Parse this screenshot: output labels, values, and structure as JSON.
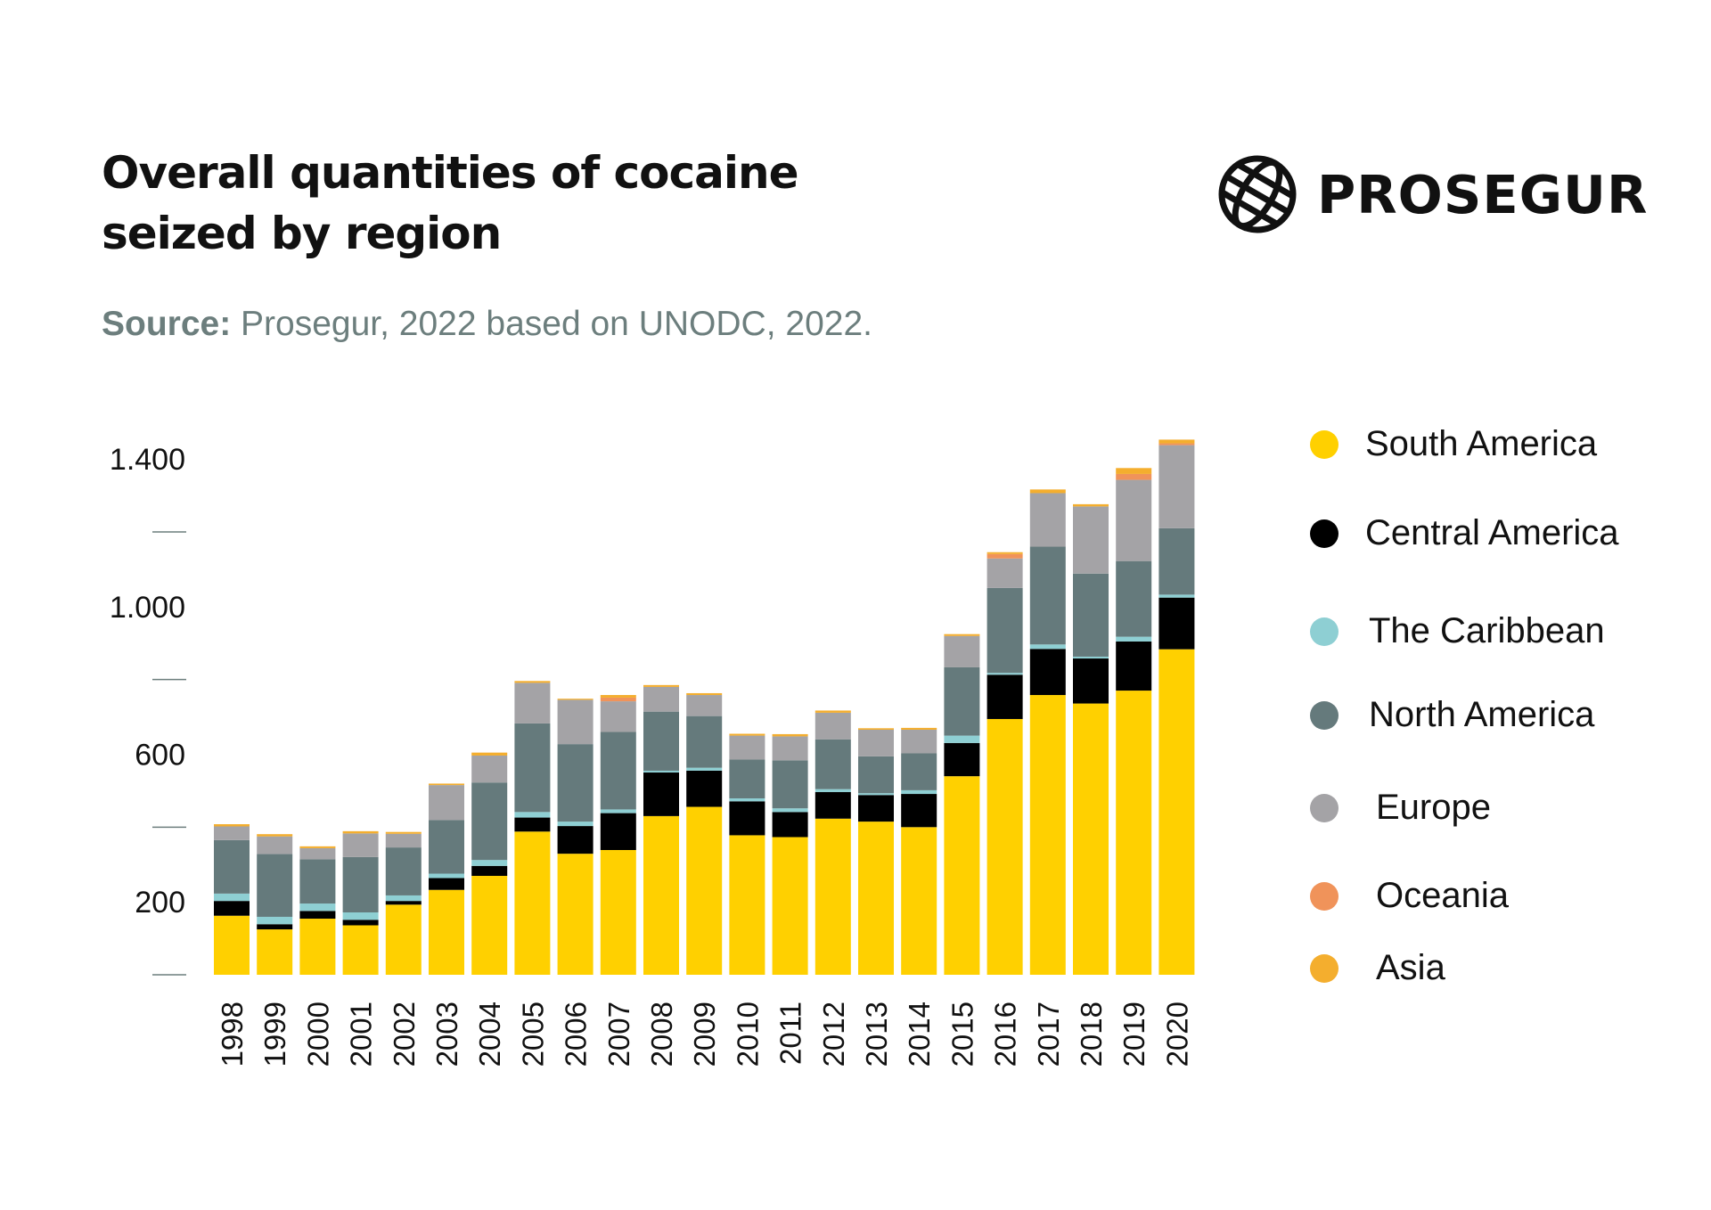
{
  "title": {
    "line1": "Overall quantities of cocaine",
    "line2": "seized by region"
  },
  "source": {
    "label": "Source:",
    "text": " Prosegur, 2022 based on UNODC, 2022."
  },
  "brand": {
    "name": "PROSEGUR",
    "icon": "globe-icon"
  },
  "colors": {
    "south_america": "#FFD000",
    "central_america": "#000000",
    "caribbean": "#8ECFD3",
    "north_america": "#657A7C",
    "europe": "#A4A3A6",
    "oceania": "#F0935A",
    "asia": "#F4AE2E",
    "tick": "#6c7e7d"
  },
  "chart_data": {
    "type": "bar",
    "stacked": true,
    "title": "Overall quantities of cocaine seized by region",
    "xlabel": "",
    "ylabel": "",
    "ylim": [
      0,
      1450
    ],
    "y_ticks_labeled": [
      {
        "value": 200,
        "label": "200"
      },
      {
        "value": 600,
        "label": "600"
      },
      {
        "value": 1000,
        "label": "1.000"
      },
      {
        "value": 1400,
        "label": "1.400"
      }
    ],
    "y_ticks_minor": [
      0,
      400,
      800,
      1200
    ],
    "legend_position": "right",
    "categories": [
      "1998",
      "1999",
      "2000",
      "2001",
      "2002",
      "2003",
      "2004",
      "2005",
      "2006",
      "2007",
      "2008",
      "2009",
      "2010",
      "2011",
      "2012",
      "2013",
      "2014",
      "2015",
      "2016",
      "2017",
      "2018",
      "2019",
      "2020"
    ],
    "series": [
      {
        "name": "South America",
        "color_key": "south_america",
        "values": [
          160,
          123,
          152,
          134,
          190,
          230,
          268,
          388,
          328,
          338,
          430,
          455,
          378,
          373,
          423,
          415,
          400,
          538,
          693,
          758,
          735,
          770,
          882
        ]
      },
      {
        "name": "Central America",
        "color_key": "central_america",
        "values": [
          40,
          14,
          21,
          15,
          10,
          32,
          27,
          38,
          75,
          100,
          118,
          98,
          92,
          68,
          72,
          72,
          90,
          90,
          120,
          125,
          122,
          133,
          140
        ]
      },
      {
        "name": "The Caribbean",
        "color_key": "caribbean",
        "values": [
          20,
          20,
          20,
          20,
          15,
          12,
          16,
          15,
          12,
          10,
          5,
          8,
          8,
          10,
          8,
          5,
          10,
          20,
          5,
          12,
          5,
          13,
          8
        ]
      },
      {
        "name": "North America",
        "color_key": "north_america",
        "values": [
          145,
          170,
          120,
          150,
          130,
          145,
          210,
          240,
          210,
          210,
          160,
          140,
          105,
          130,
          135,
          100,
          100,
          185,
          230,
          265,
          225,
          205,
          180
        ]
      },
      {
        "name": "Europe",
        "color_key": "europe",
        "values": [
          37,
          48,
          30,
          64,
          37,
          95,
          73,
          110,
          120,
          83,
          67,
          57,
          65,
          65,
          72,
          72,
          64,
          85,
          80,
          145,
          182,
          220,
          225
        ]
      },
      {
        "name": "Oceania",
        "color_key": "oceania",
        "values": [
          0,
          0,
          0,
          0,
          0,
          0,
          0,
          0,
          0,
          10,
          0,
          0,
          0,
          0,
          0,
          0,
          0,
          0,
          12,
          0,
          0,
          16,
          5
        ]
      },
      {
        "name": "Asia",
        "color_key": "asia",
        "values": [
          6,
          6,
          5,
          6,
          5,
          4,
          8,
          5,
          3,
          7,
          5,
          5,
          5,
          6,
          6,
          4,
          5,
          5,
          5,
          10,
          6,
          16,
          10
        ]
      }
    ]
  }
}
